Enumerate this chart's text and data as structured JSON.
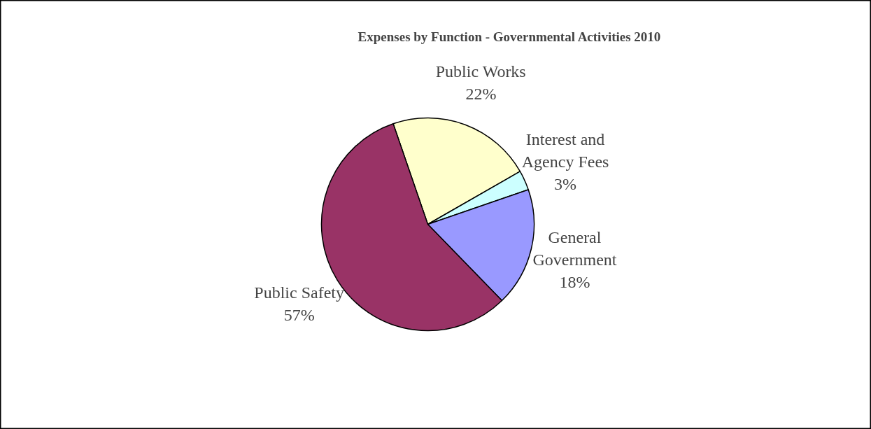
{
  "chart_data": {
    "type": "pie",
    "title": "Expenses by Function - Governmental Activities 2010",
    "categories": [
      "Public Works",
      "Interest and Agency Fees",
      "General Government",
      "Public Safety"
    ],
    "values": [
      22,
      3,
      18,
      57
    ],
    "value_labels": [
      "22%",
      "3%",
      "18%",
      "57%"
    ],
    "colors": [
      "#ffffcc",
      "#ccffff",
      "#9999ff",
      "#993366"
    ]
  }
}
